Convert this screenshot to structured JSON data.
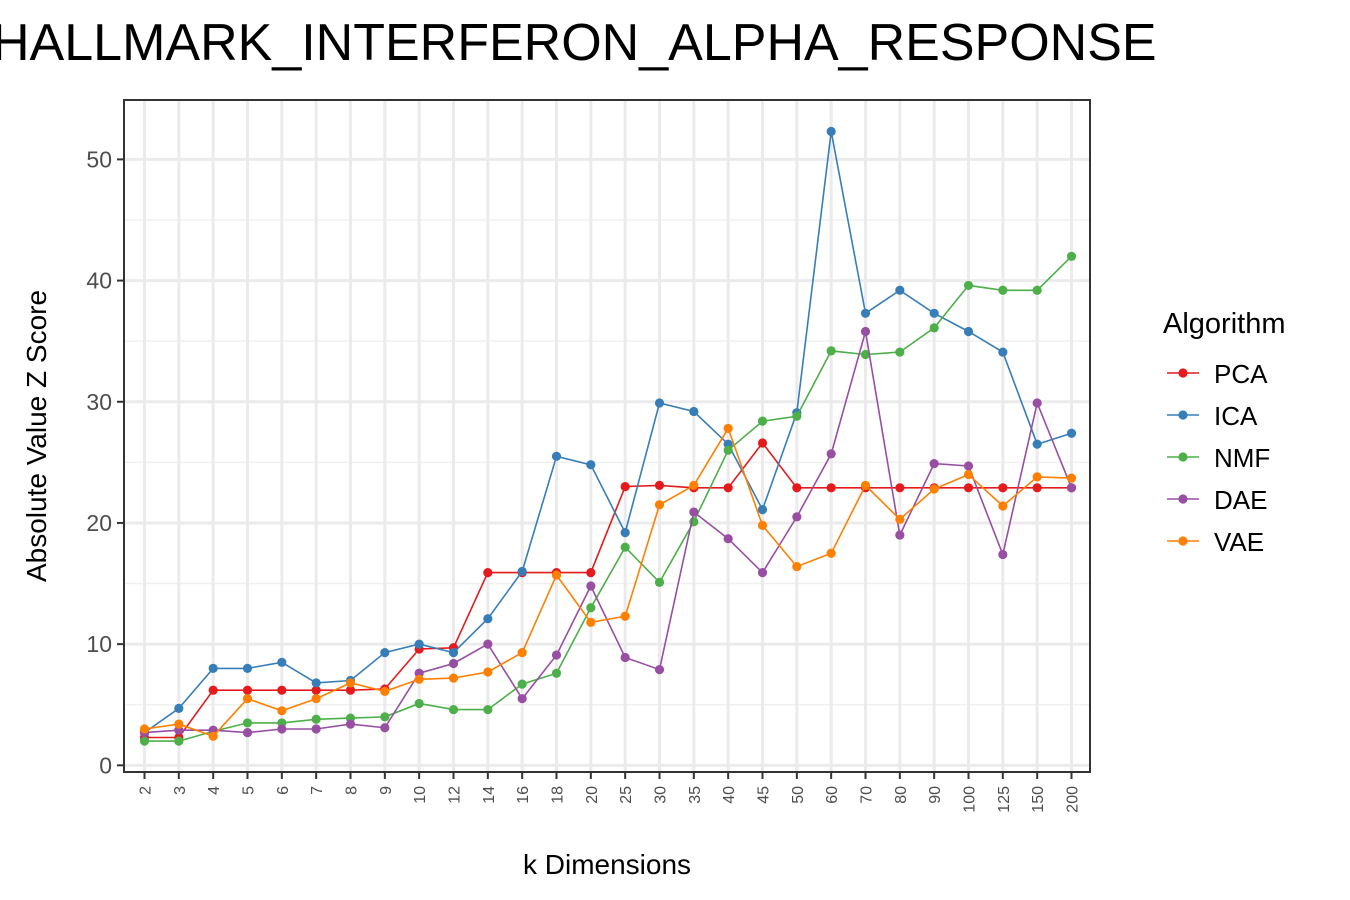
{
  "chart_data": {
    "type": "line",
    "title": "HALLMARK_INTERFERON_ALPHA_RESPONSE",
    "xlabel": "k Dimensions",
    "ylabel": "Absolute Value Z Score",
    "ylim": [
      0,
      55
    ],
    "yticks": [
      0,
      10,
      20,
      30,
      40,
      50
    ],
    "grid": true,
    "legend_title": "Algorithm",
    "legend_position": "right",
    "categories": [
      "2",
      "3",
      "4",
      "5",
      "6",
      "7",
      "8",
      "9",
      "10",
      "12",
      "14",
      "16",
      "18",
      "20",
      "25",
      "30",
      "35",
      "40",
      "45",
      "50",
      "60",
      "70",
      "80",
      "90",
      "100",
      "125",
      "150",
      "200"
    ],
    "series": [
      {
        "name": "PCA",
        "color": "#E41A1C",
        "values": [
          2.3,
          2.3,
          6.2,
          6.2,
          6.2,
          6.2,
          6.2,
          6.3,
          9.6,
          9.7,
          15.9,
          15.9,
          15.9,
          15.9,
          23.0,
          23.1,
          22.9,
          22.9,
          26.6,
          22.9,
          22.9,
          22.9,
          22.9,
          22.9,
          22.9,
          22.9,
          22.9,
          22.9
        ]
      },
      {
        "name": "ICA",
        "color": "#377EB8",
        "values": [
          2.7,
          4.7,
          8.0,
          8.0,
          8.5,
          6.8,
          7.0,
          9.3,
          10.0,
          9.3,
          12.1,
          16.0,
          25.5,
          24.8,
          19.2,
          29.9,
          29.2,
          26.5,
          21.1,
          29.1,
          52.3,
          37.3,
          39.2,
          37.3,
          35.8,
          34.1,
          26.5,
          27.4
        ]
      },
      {
        "name": "NMF",
        "color": "#4DAF4A",
        "values": [
          2.0,
          2.0,
          2.8,
          3.5,
          3.5,
          3.8,
          3.9,
          4.0,
          5.1,
          4.6,
          4.6,
          6.7,
          7.6,
          13.0,
          18.0,
          15.1,
          20.1,
          26.0,
          28.4,
          28.8,
          34.2,
          33.9,
          34.1,
          36.1,
          39.6,
          39.2,
          39.2,
          42.0
        ]
      },
      {
        "name": "DAE",
        "color": "#984EA3",
        "values": [
          2.7,
          2.9,
          2.9,
          2.7,
          3.0,
          3.0,
          3.4,
          3.1,
          7.6,
          8.4,
          10.0,
          5.5,
          9.1,
          14.8,
          8.9,
          7.9,
          20.9,
          18.7,
          15.9,
          20.5,
          25.7,
          35.8,
          19.0,
          24.9,
          24.7,
          17.4,
          29.9,
          22.9
        ]
      },
      {
        "name": "VAE",
        "color": "#FF7F00",
        "values": [
          3.0,
          3.4,
          2.4,
          5.5,
          4.5,
          5.5,
          6.8,
          6.1,
          7.1,
          7.2,
          7.7,
          9.3,
          15.7,
          11.8,
          12.3,
          21.5,
          23.1,
          27.8,
          19.8,
          16.4,
          17.5,
          23.1,
          20.3,
          22.8,
          24.0,
          21.4,
          23.8,
          23.7
        ]
      }
    ]
  }
}
